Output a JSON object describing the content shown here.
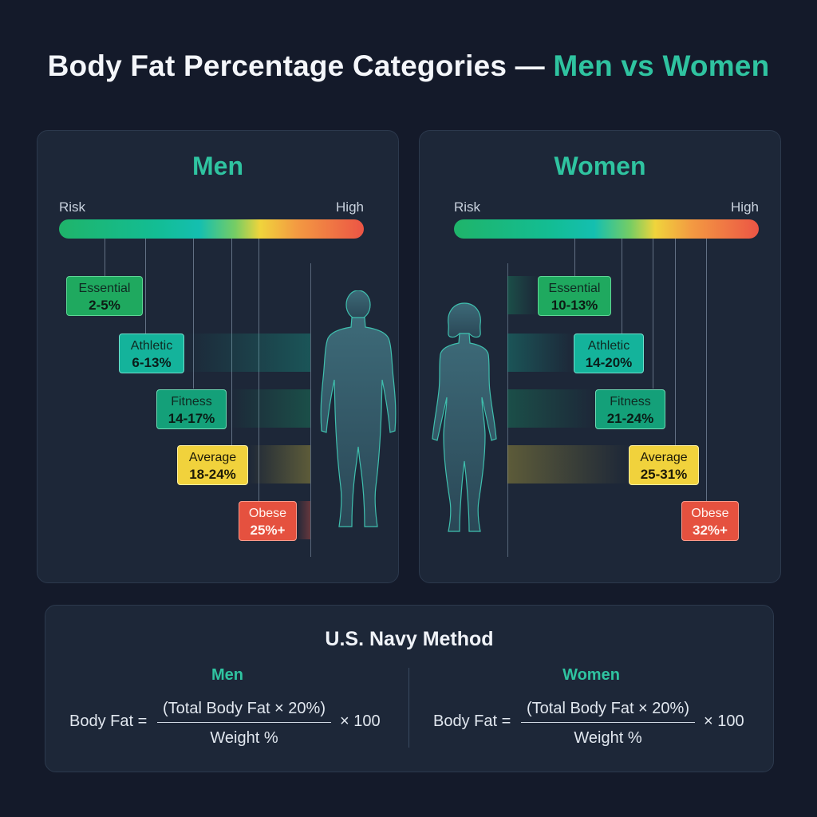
{
  "title": {
    "main": "Body Fat Percentage Categories — ",
    "accent": "Men vs Women"
  },
  "scale": {
    "left": "Risk",
    "right": "High"
  },
  "colors": {
    "accent": "#2fc3a0",
    "essential": "#1fa95f",
    "athletic": "#14b39b",
    "fitness": "#14a079",
    "average": "#f1d23c",
    "obese": "#e5513f"
  },
  "men": {
    "heading": "Men",
    "silhouette_icon": "male-silhouette-icon",
    "categories": [
      {
        "label": "Essential",
        "range": "2-5%"
      },
      {
        "label": "Athletic",
        "range": "6-13%"
      },
      {
        "label": "Fitness",
        "range": "14-17%"
      },
      {
        "label": "Average",
        "range": "18-24%"
      },
      {
        "label": "Obese",
        "range": "25%+"
      }
    ]
  },
  "women": {
    "heading": "Women",
    "silhouette_icon": "female-silhouette-icon",
    "categories": [
      {
        "label": "Essential",
        "range": "10-13%"
      },
      {
        "label": "Athletic",
        "range": "14-20%"
      },
      {
        "label": "Fitness",
        "range": "21-24%"
      },
      {
        "label": "Average",
        "range": "25-31%"
      },
      {
        "label": "Obese",
        "range": "32%+"
      }
    ]
  },
  "method": {
    "title": "U.S. Navy Method",
    "men": {
      "heading": "Men",
      "lhs": "Body Fat =",
      "numerator": "(Total Body Fat × 20%)",
      "denominator": "Weight %",
      "rhs": "× 100"
    },
    "women": {
      "heading": "Women",
      "lhs": "Body Fat =",
      "numerator": "(Total Body Fat × 20%)",
      "denominator": "Weight %",
      "rhs": "× 100"
    }
  }
}
